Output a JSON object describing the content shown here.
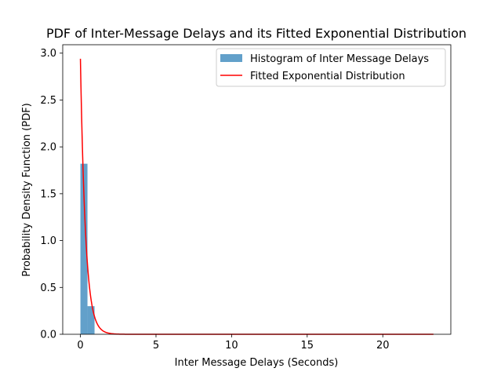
{
  "chart_data": {
    "type": "bar",
    "title": "PDF of Inter-Message Delays and its Fitted Exponential Distribution",
    "xlabel": "Inter Message Delays (Seconds)",
    "ylabel": "Probability Density Function (PDF)",
    "xlim": [
      -1.17,
      24.5
    ],
    "ylim": [
      0,
      3.09
    ],
    "xticks": [
      0,
      5,
      10,
      15,
      20
    ],
    "xtick_labels": [
      "0",
      "5",
      "10",
      "15",
      "20"
    ],
    "yticks": [
      0.0,
      0.5,
      1.0,
      1.5,
      2.0,
      2.5,
      3.0
    ],
    "ytick_labels": [
      "0.0",
      "0.5",
      "1.0",
      "1.5",
      "2.0",
      "2.5",
      "3.0"
    ],
    "grid": false,
    "legend_position": "top-right",
    "histogram": {
      "name": "Histogram of Inter Message Delays",
      "color": "#1f77b4",
      "opacity": 0.7,
      "bin_width": 0.467,
      "bins": [
        {
          "x0": 0.0,
          "value": 1.82
        },
        {
          "x0": 0.467,
          "value": 0.3
        },
        {
          "x0": 0.934,
          "value": 0.002
        },
        {
          "x0": 1.401,
          "value": 0.001
        }
      ]
    },
    "fitted_curve": {
      "name": "Fitted Exponential Distribution",
      "color": "#ff0000",
      "distribution": "exponential",
      "rate": 2.94,
      "pdf_at_zero": 2.94,
      "x_range": [
        0,
        23.35
      ]
    }
  }
}
